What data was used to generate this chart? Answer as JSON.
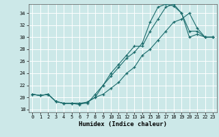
{
  "xlabel": "Humidex (Indice chaleur)",
  "xlim": [
    -0.5,
    23.5
  ],
  "ylim": [
    17.5,
    35.5
  ],
  "xticks": [
    0,
    1,
    2,
    3,
    4,
    5,
    6,
    7,
    8,
    9,
    10,
    11,
    12,
    13,
    14,
    15,
    16,
    17,
    18,
    19,
    20,
    21,
    22,
    23
  ],
  "yticks": [
    18,
    20,
    22,
    24,
    26,
    28,
    30,
    32,
    34
  ],
  "background_color": "#cce8e8",
  "grid_color": "#ffffff",
  "line_color": "#1a6b6b",
  "line1_x": [
    0,
    1,
    2,
    3,
    4,
    5,
    6,
    7,
    8,
    9,
    10,
    11,
    12,
    13,
    14,
    15,
    16,
    17,
    18,
    19,
    20,
    21,
    22,
    23
  ],
  "line1_y": [
    20.5,
    20.3,
    20.5,
    19.3,
    19.0,
    19.0,
    18.8,
    19.2,
    20.0,
    22.0,
    23.5,
    25.0,
    26.5,
    27.5,
    29.0,
    32.5,
    35.0,
    35.5,
    35.2,
    34.0,
    31.0,
    31.0,
    30.0,
    30.0
  ],
  "line2_x": [
    0,
    1,
    2,
    3,
    4,
    5,
    6,
    7,
    8,
    9,
    10,
    11,
    12,
    13,
    14,
    15,
    16,
    17,
    18,
    19,
    20,
    21,
    22,
    23
  ],
  "line2_y": [
    20.5,
    20.3,
    20.5,
    19.3,
    19.0,
    19.0,
    19.0,
    19.0,
    20.5,
    22.0,
    24.0,
    25.5,
    27.0,
    28.5,
    28.5,
    31.0,
    33.0,
    35.0,
    35.5,
    34.0,
    30.0,
    30.5,
    30.0,
    30.0
  ],
  "line3_x": [
    0,
    1,
    2,
    3,
    4,
    5,
    6,
    7,
    8,
    9,
    10,
    11,
    12,
    13,
    14,
    15,
    16,
    17,
    18,
    19,
    20,
    21,
    22,
    23
  ],
  "line3_y": [
    20.5,
    20.3,
    20.5,
    19.3,
    19.0,
    19.0,
    19.0,
    19.2,
    20.0,
    20.5,
    21.5,
    22.5,
    24.0,
    25.0,
    27.0,
    28.0,
    29.5,
    31.0,
    32.5,
    33.0,
    34.0,
    31.5,
    30.0,
    30.0
  ]
}
